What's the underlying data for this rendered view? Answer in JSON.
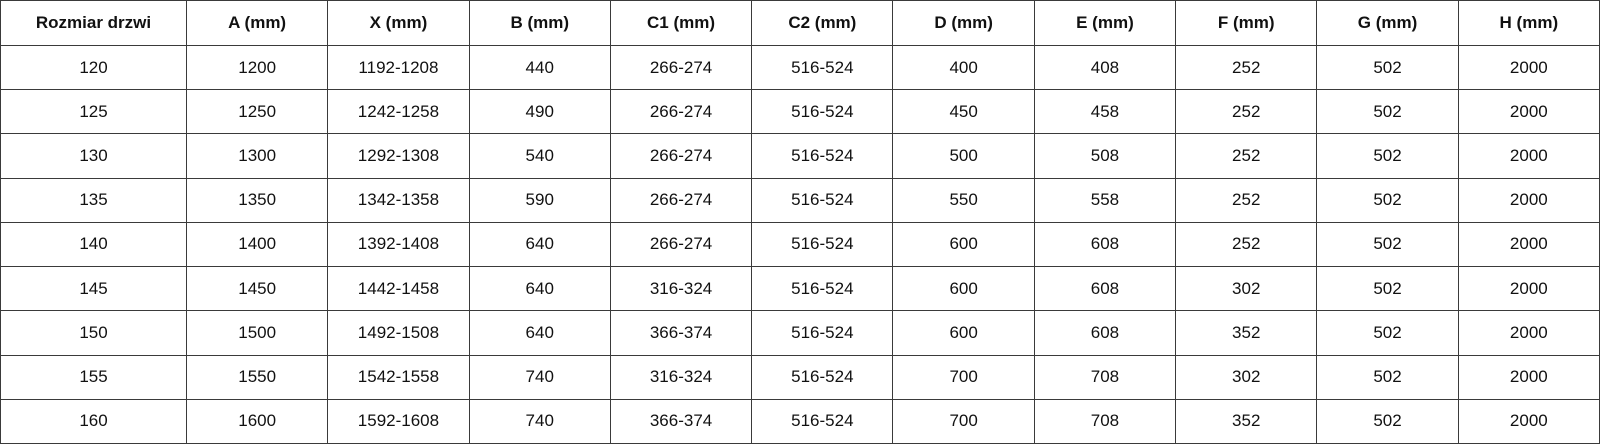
{
  "table": {
    "headers": [
      "Rozmiar drzwi",
      "A (mm)",
      "X (mm)",
      "B (mm)",
      "C1 (mm)",
      "C2 (mm)",
      "D (mm)",
      "E (mm)",
      "F (mm)",
      "G (mm)",
      "H (mm)"
    ],
    "rows": [
      [
        "120",
        "1200",
        "1192-1208",
        "440",
        "266-274",
        "516-524",
        "400",
        "408",
        "252",
        "502",
        "2000"
      ],
      [
        "125",
        "1250",
        "1242-1258",
        "490",
        "266-274",
        "516-524",
        "450",
        "458",
        "252",
        "502",
        "2000"
      ],
      [
        "130",
        "1300",
        "1292-1308",
        "540",
        "266-274",
        "516-524",
        "500",
        "508",
        "252",
        "502",
        "2000"
      ],
      [
        "135",
        "1350",
        "1342-1358",
        "590",
        "266-274",
        "516-524",
        "550",
        "558",
        "252",
        "502",
        "2000"
      ],
      [
        "140",
        "1400",
        "1392-1408",
        "640",
        "266-274",
        "516-524",
        "600",
        "608",
        "252",
        "502",
        "2000"
      ],
      [
        "145",
        "1450",
        "1442-1458",
        "640",
        "316-324",
        "516-524",
        "600",
        "608",
        "302",
        "502",
        "2000"
      ],
      [
        "150",
        "1500",
        "1492-1508",
        "640",
        "366-374",
        "516-524",
        "600",
        "608",
        "352",
        "502",
        "2000"
      ],
      [
        "155",
        "1550",
        "1542-1558",
        "740",
        "316-324",
        "516-524",
        "700",
        "708",
        "302",
        "502",
        "2000"
      ],
      [
        "160",
        "1600",
        "1592-1608",
        "740",
        "366-374",
        "516-524",
        "700",
        "708",
        "352",
        "502",
        "2000"
      ]
    ]
  }
}
